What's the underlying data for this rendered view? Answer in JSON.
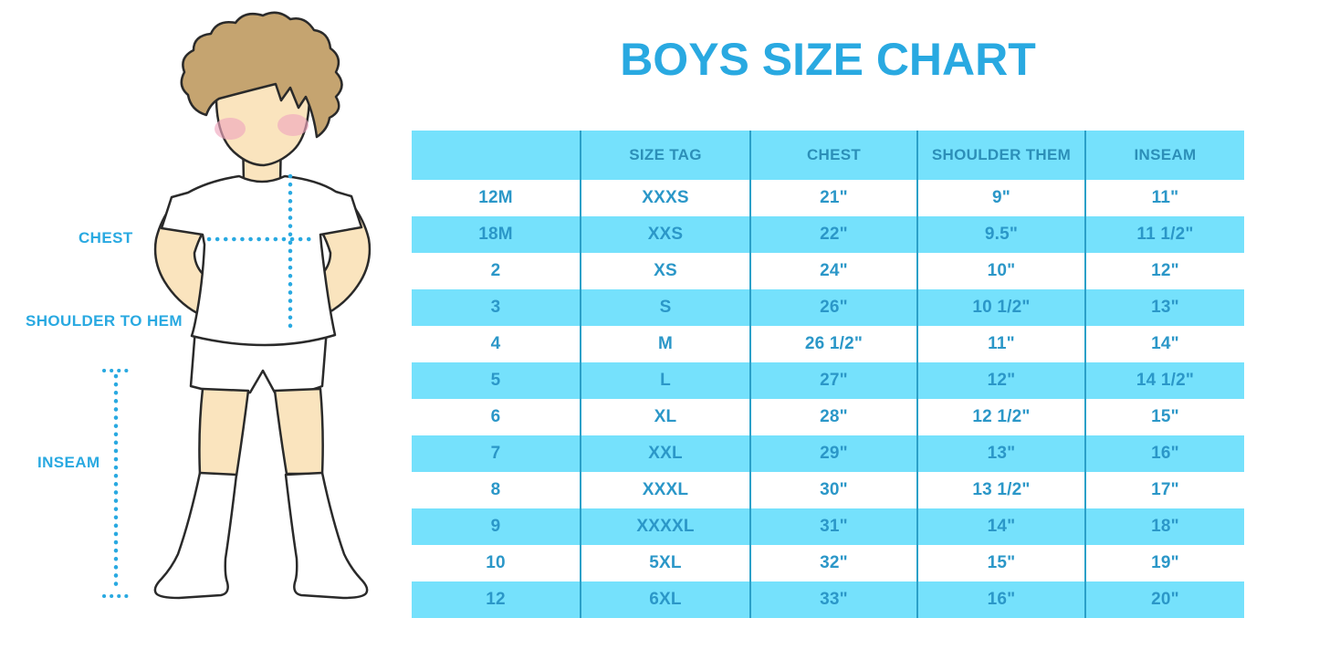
{
  "title": "BOYS SIZE CHART",
  "colors": {
    "accent_blue": "#29A9E1",
    "band_blue": "#75E1FC",
    "cell_text_blue": "#2B97C8",
    "separator_blue": "#2BA0C8",
    "skin": "#FAE4BE",
    "hair": "#C5A470",
    "blush": "#F0A8BF"
  },
  "figure": {
    "chest_label": "CHEST",
    "shoulder_label": "SHOULDER TO HEM",
    "inseam_label": "INSEAM"
  },
  "chart_data": {
    "type": "table",
    "title": "BOYS SIZE CHART",
    "columns": [
      "",
      "SIZE TAG",
      "CHEST",
      "SHOULDER THEM",
      "INSEAM"
    ],
    "rows": [
      [
        "12M",
        "XXXS",
        "21\"",
        "9\"",
        "11\""
      ],
      [
        "18M",
        "XXS",
        "22\"",
        "9.5\"",
        "11 1/2\""
      ],
      [
        "2",
        "XS",
        "24\"",
        "10\"",
        "12\""
      ],
      [
        "3",
        "S",
        "26\"",
        "10 1/2\"",
        "13\""
      ],
      [
        "4",
        "M",
        "26 1/2\"",
        "11\"",
        "14\""
      ],
      [
        "5",
        "L",
        "27\"",
        "12\"",
        "14 1/2\""
      ],
      [
        "6",
        "XL",
        "28\"",
        "12 1/2\"",
        "15\""
      ],
      [
        "7",
        "XXL",
        "29\"",
        "13\"",
        "16\""
      ],
      [
        "8",
        "XXXL",
        "30\"",
        "13 1/2\"",
        "17\""
      ],
      [
        "9",
        "XXXXL",
        "31\"",
        "14\"",
        "18\""
      ],
      [
        "10",
        "5XL",
        "32\"",
        "15\"",
        "19\""
      ],
      [
        "12",
        "6XL",
        "33\"",
        "16\"",
        "20\""
      ]
    ],
    "row_striping": [
      "white",
      "blue",
      "white",
      "blue",
      "white",
      "blue",
      "white",
      "blue",
      "white",
      "blue",
      "white",
      "blue"
    ]
  }
}
